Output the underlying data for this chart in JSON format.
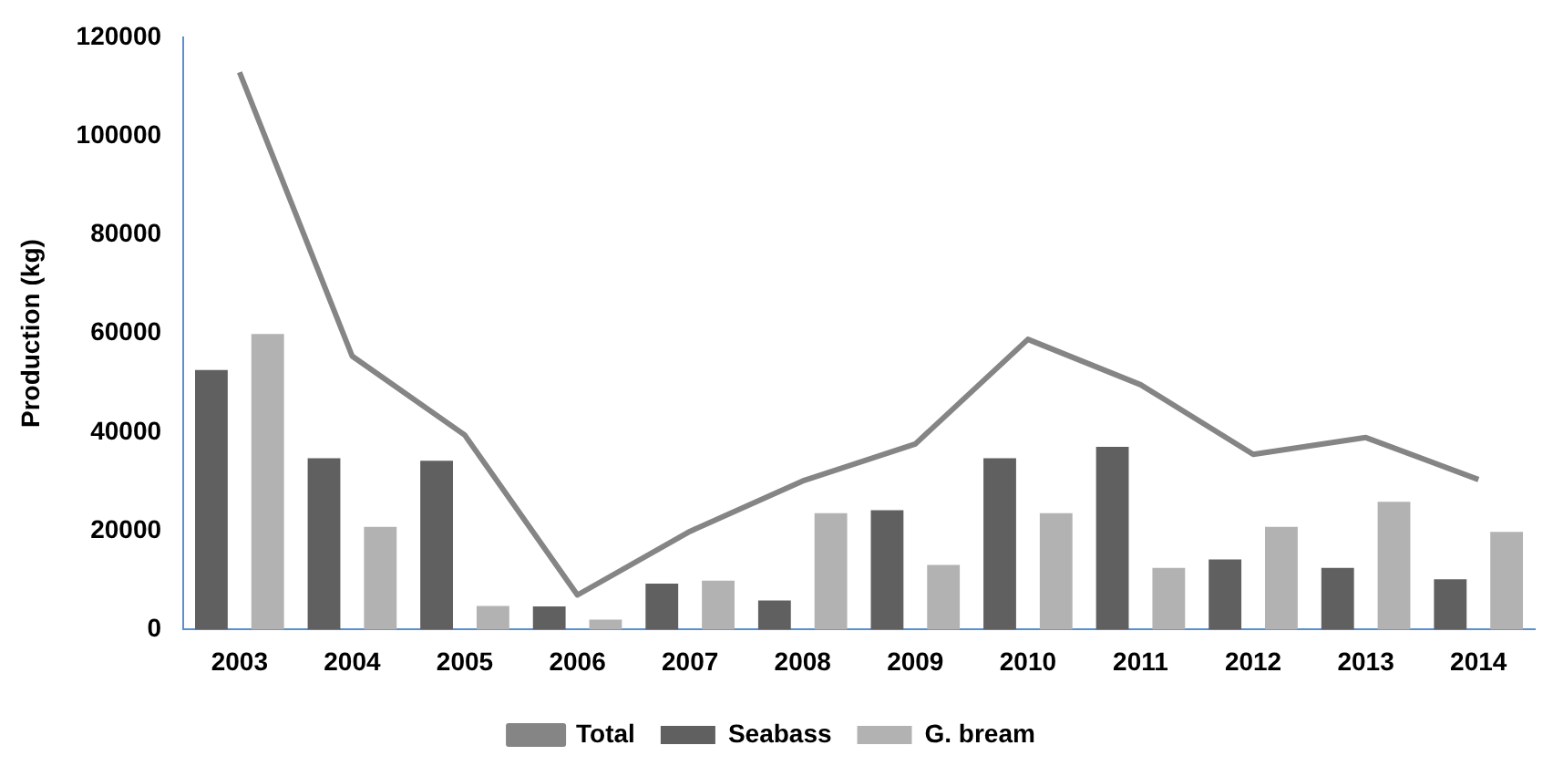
{
  "chart_data": {
    "type": "bar",
    "ylabel": "Production (kg)",
    "categories": [
      "2003",
      "2004",
      "2005",
      "2006",
      "2007",
      "2008",
      "2009",
      "2010",
      "2011",
      "2012",
      "2013",
      "2014"
    ],
    "series": [
      {
        "name": "Seabass",
        "color": "#606060",
        "values": [
          52600,
          34700,
          34200,
          4700,
          9300,
          5900,
          24200,
          34700,
          37000,
          14200,
          12500,
          10200
        ]
      },
      {
        "name": "G. bream",
        "color": "#b2b2b2",
        "values": [
          59900,
          20800,
          4800,
          2000,
          9900,
          23600,
          13100,
          23600,
          12500,
          20800,
          25900,
          19800
        ]
      },
      {
        "name": "Total",
        "type": "line",
        "color": "#858585",
        "values": [
          112900,
          55400,
          39400,
          7000,
          19900,
          30100,
          37600,
          58800,
          49600,
          35500,
          38900,
          30400
        ]
      }
    ],
    "ylim": [
      0,
      120000
    ],
    "yticks": [
      0,
      20000,
      40000,
      60000,
      80000,
      100000,
      120000
    ],
    "grid": false,
    "legend": "bottom",
    "marker": "none"
  }
}
